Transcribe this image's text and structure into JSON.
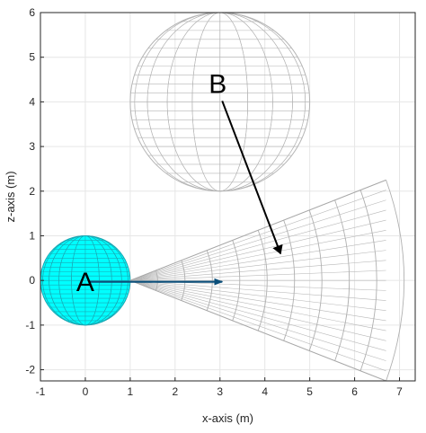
{
  "chart_data": {
    "type": "scatter",
    "xlabel": "x-axis (m)",
    "ylabel": "z-axis (m)",
    "xlim": [
      -1,
      7.35
    ],
    "ylim": [
      -2.25,
      6
    ],
    "xticks": [
      -1,
      0,
      1,
      2,
      3,
      4,
      5,
      6,
      7
    ],
    "yticks": [
      -2,
      -1,
      0,
      1,
      2,
      3,
      4,
      5,
      6
    ],
    "grid": true,
    "colors": {
      "sphere_a": "#00ffff",
      "sphere_b": "#b0b0b0",
      "cone": "#b0b0b0",
      "arrow_a": "#0b4f7a",
      "arrow_b": "#000000"
    },
    "objects": [
      {
        "id": "sphere-a",
        "shape": "sphere",
        "center": [
          0,
          0
        ],
        "radius": 1,
        "fill": "#00ffff"
      },
      {
        "id": "sphere-b",
        "shape": "sphere",
        "center": [
          3,
          4
        ],
        "radius": 2,
        "fill": "none"
      },
      {
        "id": "cone",
        "shape": "cone",
        "apex": [
          1,
          0
        ],
        "end_x": 6.7,
        "half_height_end": 2.25
      }
    ],
    "labels": [
      {
        "text": "A",
        "at": [
          0,
          -0.2
        ]
      },
      {
        "text": "B",
        "at": [
          2.95,
          4.2
        ]
      }
    ],
    "arrows": [
      {
        "id": "arrow-a",
        "from": [
          0.1,
          -0.03
        ],
        "to": [
          3.05,
          -0.03
        ],
        "color": "#0b4f7a"
      },
      {
        "id": "arrow-b",
        "from": [
          3.05,
          4.02
        ],
        "to": [
          4.35,
          0.6
        ],
        "color": "#000000"
      }
    ]
  }
}
